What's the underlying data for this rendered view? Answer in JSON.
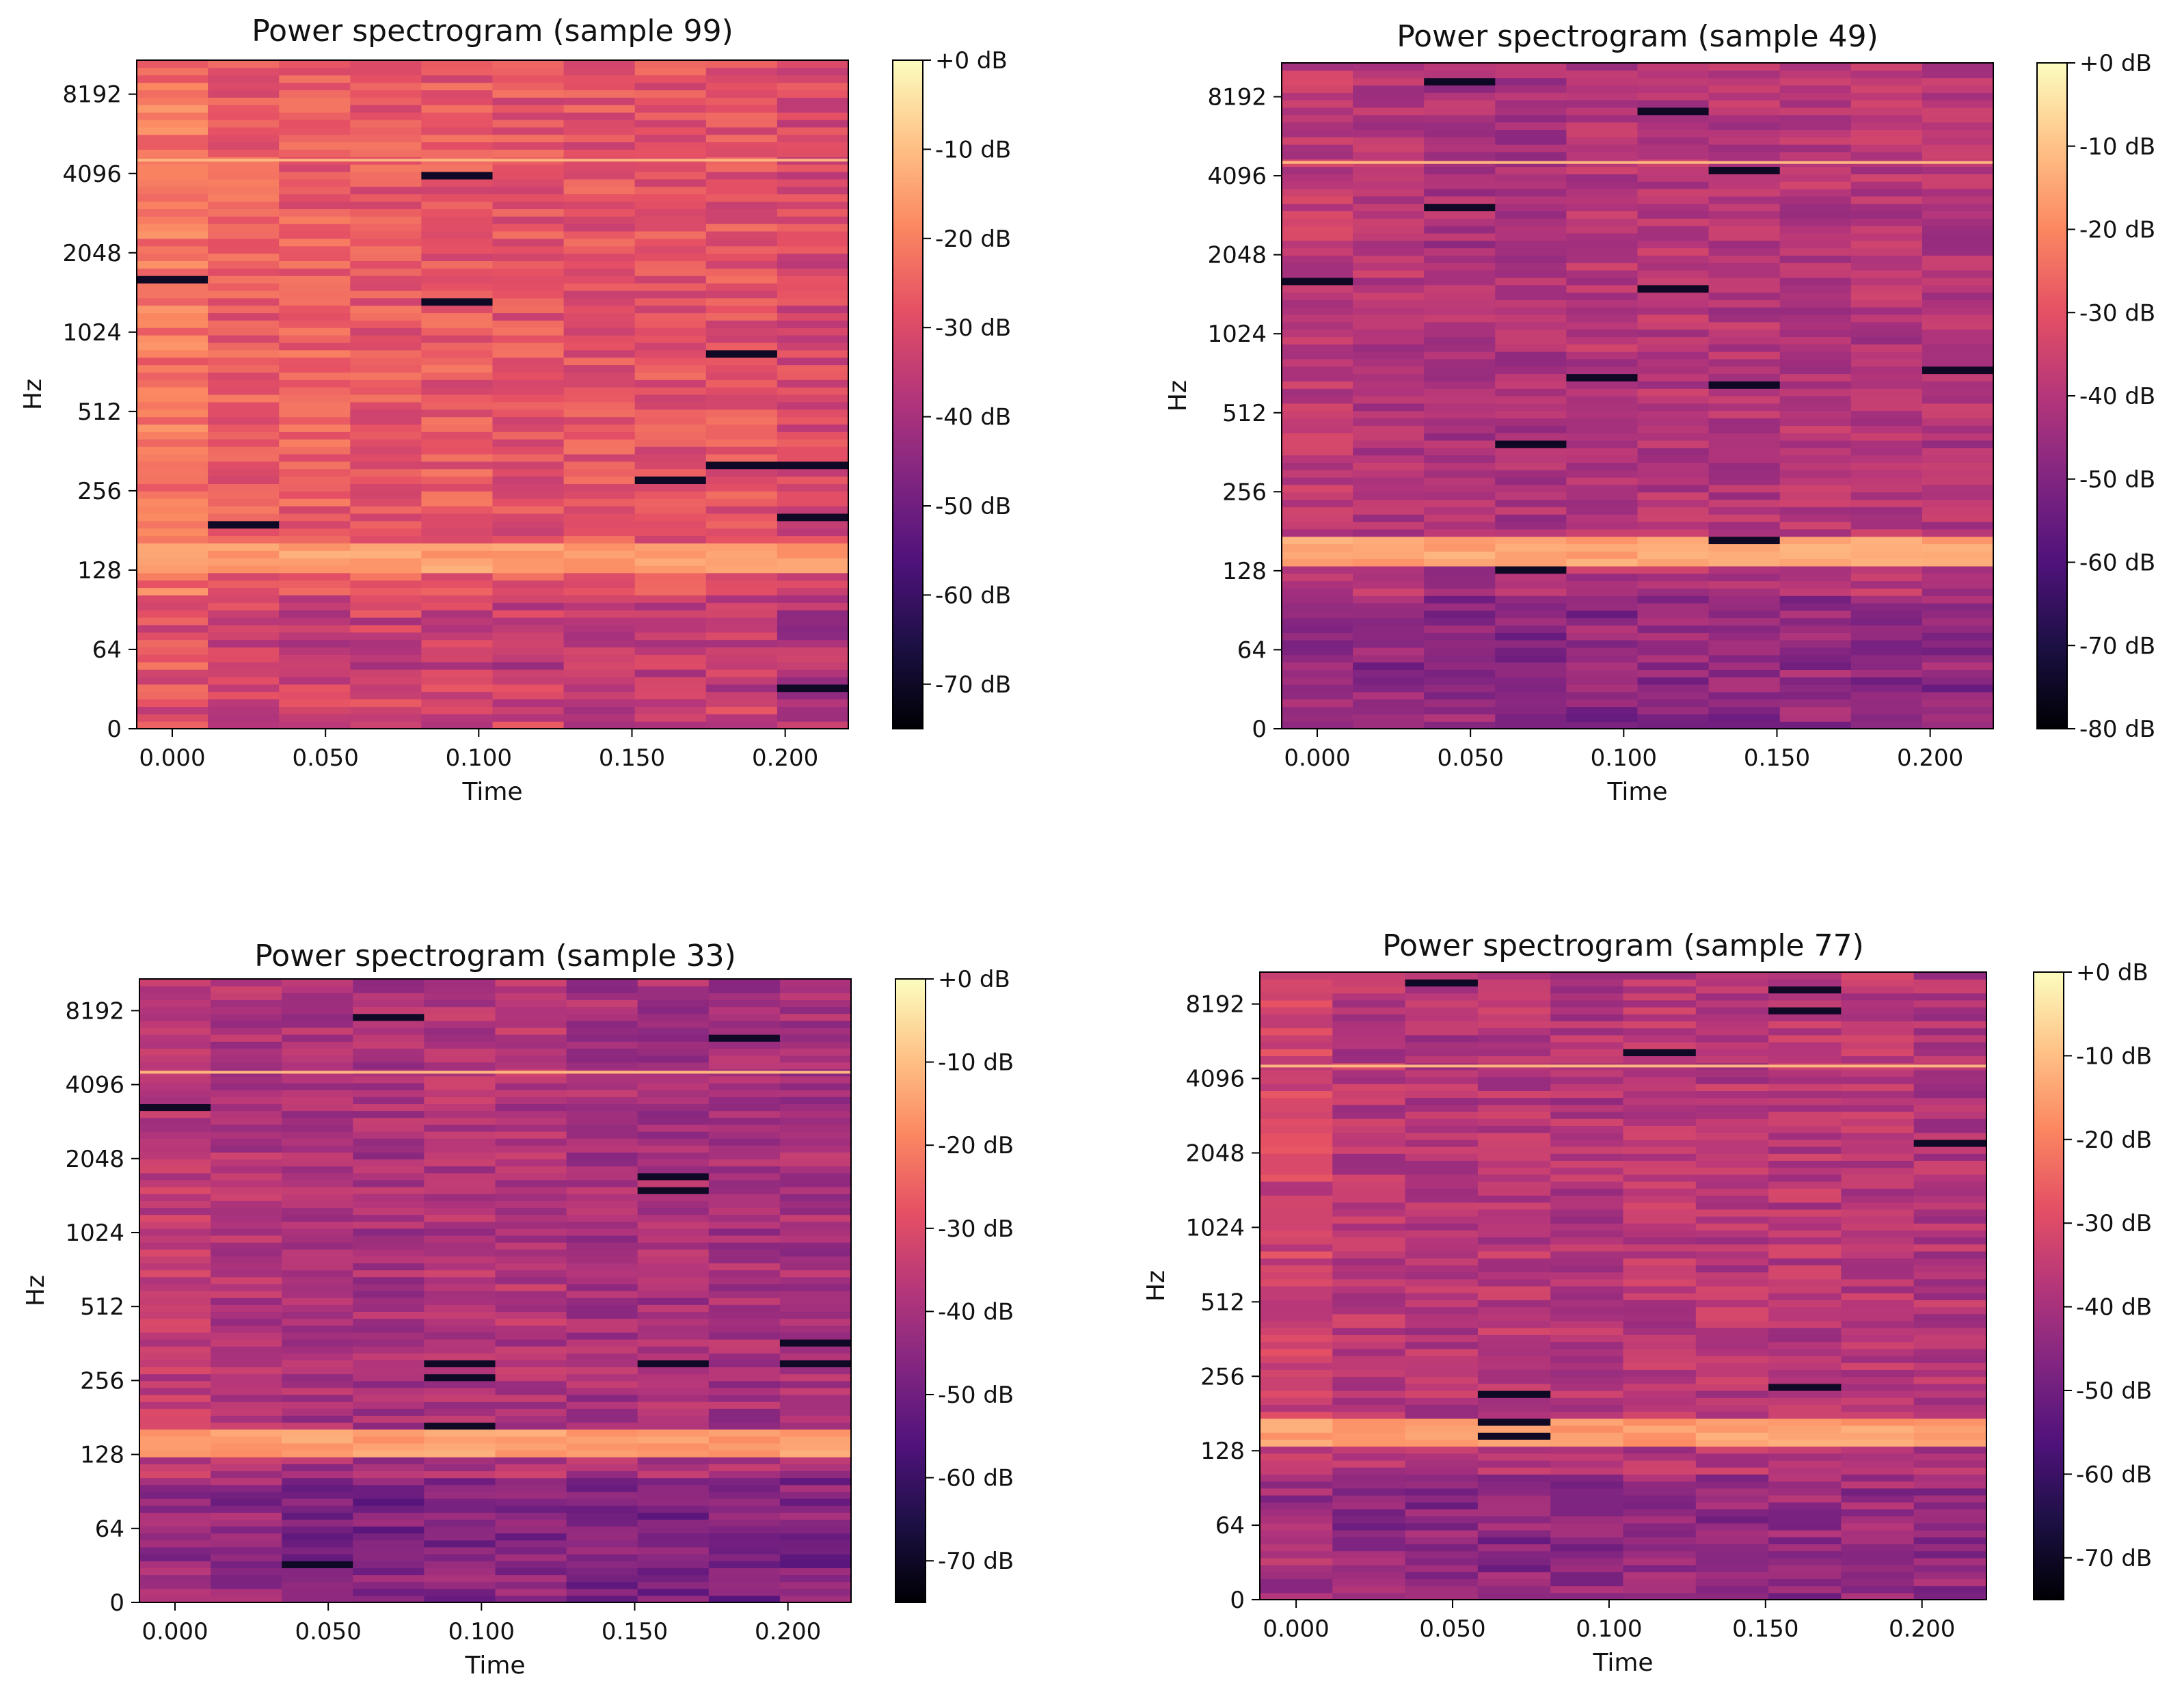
{
  "chart_data": [
    {
      "type": "heatmap",
      "title": "Power spectrogram (sample 99)",
      "xlabel": "Time",
      "ylabel": "Hz",
      "x_ticks": [
        "0.000",
        "0.050",
        "0.100",
        "0.150",
        "0.200"
      ],
      "y_ticks": [
        "0",
        "64",
        "128",
        "256",
        "512",
        "1024",
        "2048",
        "4096",
        "8192"
      ],
      "colorbar_ticks": [
        "+0 dB",
        "-10 dB",
        "-20 dB",
        "-30 dB",
        "-40 dB",
        "-50 dB",
        "-60 dB",
        "-70 dB"
      ],
      "colorbar_range_db": [
        -75,
        0
      ],
      "y_scale": "log",
      "colormap": "magma",
      "frames": 10,
      "frame_starts_s": [
        0.0,
        0.023,
        0.046,
        0.07,
        0.093,
        0.116,
        0.139,
        0.163,
        0.186,
        0.209
      ],
      "hot_bands_hz": [
        140,
        4600
      ],
      "approx_mean_level_db": [
        -22,
        -26,
        -26,
        -27,
        -27,
        -28,
        -28,
        -28,
        -28,
        -31
      ]
    },
    {
      "type": "heatmap",
      "title": "Power spectrogram (sample 49)",
      "xlabel": "Time",
      "ylabel": "Hz",
      "x_ticks": [
        "0.000",
        "0.050",
        "0.100",
        "0.150",
        "0.200"
      ],
      "y_ticks": [
        "0",
        "64",
        "128",
        "256",
        "512",
        "1024",
        "2048",
        "4096",
        "8192"
      ],
      "colorbar_ticks": [
        "+0 dB",
        "-10 dB",
        "-20 dB",
        "-30 dB",
        "-40 dB",
        "-50 dB",
        "-60 dB",
        "-70 dB",
        "-80 dB"
      ],
      "colorbar_range_db": [
        -80,
        0
      ],
      "y_scale": "log",
      "colormap": "magma",
      "frames": 10,
      "frame_starts_s": [
        0.0,
        0.023,
        0.046,
        0.07,
        0.093,
        0.116,
        0.139,
        0.163,
        0.186,
        0.209
      ],
      "hot_bands_hz": [
        150,
        4600
      ],
      "approx_mean_level_db": [
        -38,
        -40,
        -42,
        -42,
        -40,
        -40,
        -40,
        -40,
        -40,
        -41
      ]
    },
    {
      "type": "heatmap",
      "title": "Power spectrogram (sample 33)",
      "xlabel": "Time",
      "ylabel": "Hz",
      "x_ticks": [
        "0.000",
        "0.050",
        "0.100",
        "0.150",
        "0.200"
      ],
      "y_ticks": [
        "0",
        "64",
        "128",
        "256",
        "512",
        "1024",
        "2048",
        "4096",
        "8192"
      ],
      "colorbar_ticks": [
        "+0 dB",
        "-10 dB",
        "-20 dB",
        "-30 dB",
        "-40 dB",
        "-50 dB",
        "-60 dB",
        "-70 dB"
      ],
      "colorbar_range_db": [
        -75,
        0
      ],
      "y_scale": "log",
      "colormap": "magma",
      "frames": 10,
      "frame_starts_s": [
        0.0,
        0.023,
        0.046,
        0.07,
        0.093,
        0.116,
        0.139,
        0.163,
        0.186,
        0.209
      ],
      "hot_bands_hz": [
        145,
        4600
      ],
      "approx_mean_level_db": [
        -36,
        -38,
        -40,
        -40,
        -38,
        -38,
        -40,
        -40,
        -40,
        -40
      ]
    },
    {
      "type": "heatmap",
      "title": "Power spectrogram (sample 77)",
      "xlabel": "Time",
      "ylabel": "Hz",
      "x_ticks": [
        "0.000",
        "0.050",
        "0.100",
        "0.150",
        "0.200"
      ],
      "y_ticks": [
        "0",
        "64",
        "128",
        "256",
        "512",
        "1024",
        "2048",
        "4096",
        "8192"
      ],
      "colorbar_ticks": [
        "+0 dB",
        "-10 dB",
        "-20 dB",
        "-30 dB",
        "-40 dB",
        "-50 dB",
        "-60 dB",
        "-70 dB"
      ],
      "colorbar_range_db": [
        -75,
        0
      ],
      "y_scale": "log",
      "colormap": "magma",
      "frames": 10,
      "frame_starts_s": [
        0.0,
        0.023,
        0.046,
        0.07,
        0.093,
        0.116,
        0.139,
        0.163,
        0.186,
        0.209
      ],
      "hot_bands_hz": [
        150,
        4600
      ],
      "approx_mean_level_db": [
        -33,
        -37,
        -38,
        -37,
        -38,
        -37,
        -37,
        -37,
        -37,
        -38
      ]
    }
  ]
}
